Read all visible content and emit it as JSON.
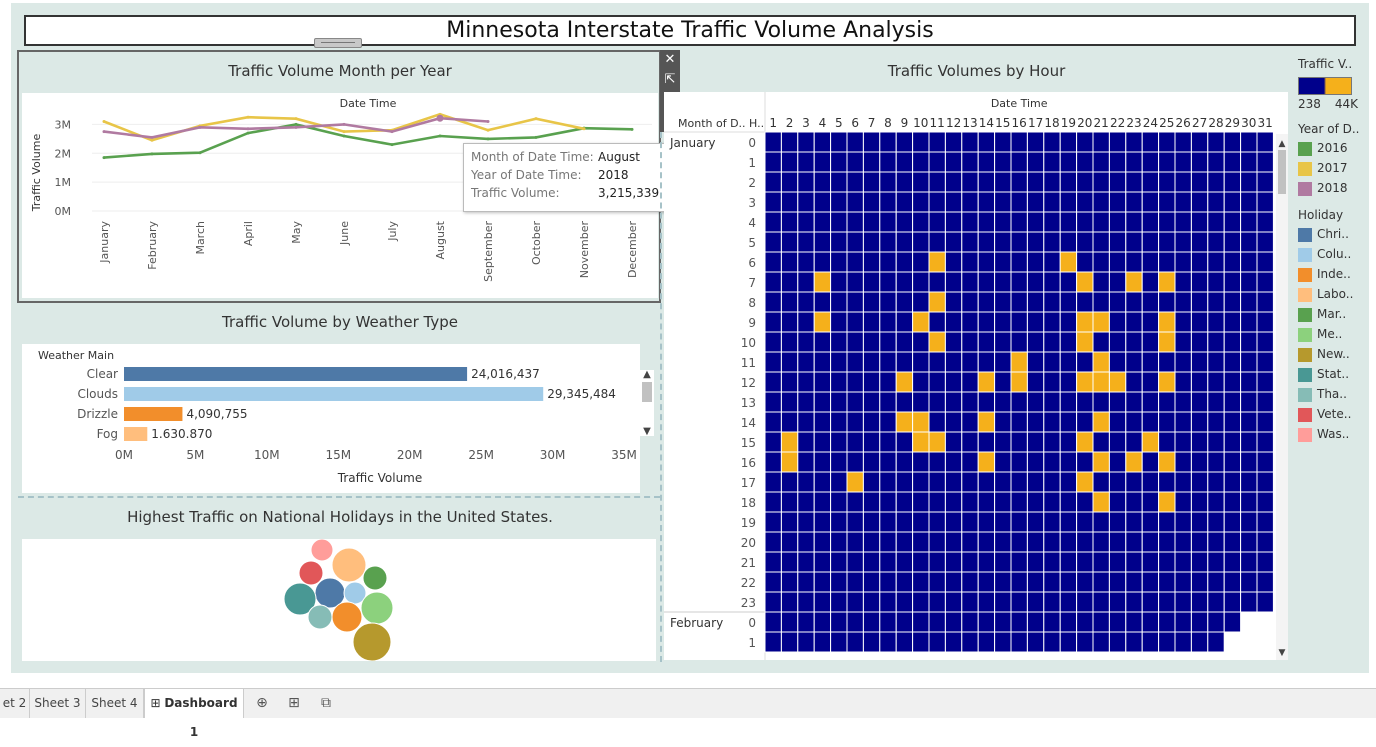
{
  "dashboard_title": "Minnesota Interstate Traffic Volume Analysis",
  "month_chart": {
    "title": "Traffic Volume Month per Year",
    "header": "Date Time",
    "ylabel": "Traffic Volume",
    "yticks": [
      "0M",
      "1M",
      "2M",
      "3M"
    ],
    "months": [
      "January",
      "February",
      "March",
      "April",
      "May",
      "June",
      "July",
      "August",
      "September",
      "October",
      "November",
      "December"
    ]
  },
  "tooltip": {
    "rows": [
      {
        "k": "Month of Date Time:",
        "v": "August"
      },
      {
        "k": "Year of Date Time:",
        "v": "2018"
      },
      {
        "k": "Traffic Volume:",
        "v": "3,215,339"
      }
    ]
  },
  "toolbar": {
    "close": "close",
    "popout": "pop-out",
    "filter": "filter",
    "more": "more options"
  },
  "weather_chart": {
    "title": "Traffic Volume by Weather Type",
    "header": "Weather Main",
    "xlabel": "Traffic Volume",
    "xticks": [
      "0M",
      "5M",
      "10M",
      "15M",
      "20M",
      "25M",
      "30M",
      "35M"
    ]
  },
  "holiday_chart": {
    "title": "Highest Traffic on National Holidays in the United States."
  },
  "heatmap": {
    "title": "Traffic Volumes by Hour",
    "header": "Date Time",
    "col_month": "Month of D..",
    "col_hour": "H..",
    "months": [
      "January",
      "February"
    ]
  },
  "legend": {
    "traffic_title": "Traffic V..",
    "traffic_min": "238",
    "traffic_max": "44K",
    "year_title": "Year of D..",
    "years": [
      {
        "label": "2016",
        "color": "#59a14f"
      },
      {
        "label": "2017",
        "color": "#e8c548"
      },
      {
        "label": "2018",
        "color": "#b07aa1"
      }
    ],
    "holiday_title": "Holiday",
    "holidays": [
      {
        "label": "Chri..",
        "color": "#4e79a7"
      },
      {
        "label": "Colu..",
        "color": "#a0cbe8"
      },
      {
        "label": "Inde..",
        "color": "#f28e2b"
      },
      {
        "label": "Labo..",
        "color": "#ffbe7d"
      },
      {
        "label": "Mar..",
        "color": "#59a14f"
      },
      {
        "label": "Me..",
        "color": "#8cd17d"
      },
      {
        "label": "New..",
        "color": "#b6992d"
      },
      {
        "label": "Stat..",
        "color": "#499894"
      },
      {
        "label": "Tha..",
        "color": "#86bcb6"
      },
      {
        "label": "Vete..",
        "color": "#e15759"
      },
      {
        "label": "Was..",
        "color": "#ff9d9a"
      }
    ]
  },
  "tabs": [
    "et 2",
    "Sheet 3",
    "Sheet 4",
    "Dashboard 1"
  ],
  "tab_icons": [
    "new-worksheet-icon",
    "new-dashboard-icon",
    "new-story-icon"
  ],
  "colors": {
    "heat_low": "#00008b",
    "heat_high": "#f5b01b"
  },
  "chart_data": [
    {
      "type": "line",
      "title": "Traffic Volume Month per Year",
      "xlabel": "Date Time",
      "ylabel": "Traffic Volume",
      "categories": [
        "January",
        "February",
        "March",
        "April",
        "May",
        "June",
        "July",
        "August",
        "September",
        "October",
        "November",
        "December"
      ],
      "ylim": [
        0,
        3500000
      ],
      "series": [
        {
          "name": "2016",
          "color": "#59a14f",
          "values": [
            1850000,
            1980000,
            2020000,
            2700000,
            3000000,
            2600000,
            2300000,
            2600000,
            2500000,
            2550000,
            2870000,
            2830000
          ]
        },
        {
          "name": "2017",
          "color": "#e8c548",
          "values": [
            3100000,
            2450000,
            2950000,
            3250000,
            3200000,
            2750000,
            2800000,
            3350000,
            2800000,
            3200000,
            2850000,
            null
          ]
        },
        {
          "name": "2018",
          "color": "#b07aa1",
          "values": [
            2750000,
            2550000,
            2900000,
            2850000,
            2900000,
            3000000,
            2750000,
            3215339,
            3100000,
            null,
            null,
            null
          ]
        }
      ],
      "grid": true
    },
    {
      "type": "bar",
      "title": "Traffic Volume by Weather Type",
      "xlabel": "Traffic Volume",
      "categories": [
        "Clear",
        "Clouds",
        "Drizzle",
        "Fog"
      ],
      "values": [
        24016437,
        29345484,
        4090755,
        1630870
      ],
      "value_labels": [
        "24,016,437",
        "29,345,484",
        "4,090,755",
        "1.630.870"
      ],
      "colors": [
        "#4e79a7",
        "#a0cbe8",
        "#f28e2b",
        "#ffbe7d"
      ],
      "xlim": [
        0,
        35000000
      ]
    },
    {
      "type": "heatmap",
      "title": "Traffic Volumes by Hour",
      "x": [
        1,
        2,
        3,
        4,
        5,
        6,
        7,
        8,
        9,
        10,
        11,
        12,
        13,
        14,
        15,
        16,
        17,
        18,
        19,
        20,
        21,
        22,
        23,
        24,
        25,
        26,
        27,
        28,
        29,
        30,
        31
      ],
      "rows": [
        {
          "month": "January",
          "hours": [
            0,
            1,
            2,
            3,
            4,
            5,
            6,
            7,
            8,
            9,
            10,
            11,
            12,
            13,
            14,
            15,
            16,
            17,
            18,
            19,
            20,
            21,
            22,
            23
          ]
        },
        {
          "month": "February",
          "hours": [
            0,
            1
          ]
        }
      ],
      "high_cells": [
        [
          6,
          11
        ],
        [
          6,
          19
        ],
        [
          7,
          4
        ],
        [
          7,
          20
        ],
        [
          7,
          23
        ],
        [
          7,
          25
        ],
        [
          8,
          11
        ],
        [
          9,
          4
        ],
        [
          9,
          10
        ],
        [
          9,
          20
        ],
        [
          9,
          21
        ],
        [
          9,
          25
        ],
        [
          10,
          11
        ],
        [
          10,
          20
        ],
        [
          10,
          25
        ],
        [
          11,
          16
        ],
        [
          11,
          21
        ],
        [
          12,
          9
        ],
        [
          12,
          14
        ],
        [
          12,
          16
        ],
        [
          12,
          20
        ],
        [
          12,
          21
        ],
        [
          12,
          22
        ],
        [
          12,
          25
        ],
        [
          14,
          9
        ],
        [
          14,
          10
        ],
        [
          14,
          14
        ],
        [
          14,
          21
        ],
        [
          15,
          2
        ],
        [
          15,
          10
        ],
        [
          15,
          11
        ],
        [
          15,
          20
        ],
        [
          15,
          24
        ],
        [
          16,
          2
        ],
        [
          16,
          14
        ],
        [
          16,
          21
        ],
        [
          16,
          23
        ],
        [
          16,
          25
        ],
        [
          17,
          6
        ],
        [
          17,
          20
        ],
        [
          18,
          21
        ],
        [
          18,
          25
        ]
      ]
    },
    {
      "type": "bubble",
      "title": "Highest Traffic on National Holidays in the United States.",
      "series": [
        {
          "name": "Chri..",
          "color": "#4e79a7"
        },
        {
          "name": "Colu..",
          "color": "#a0cbe8"
        },
        {
          "name": "Inde..",
          "color": "#f28e2b"
        },
        {
          "name": "Labo..",
          "color": "#ffbe7d"
        },
        {
          "name": "Mar..",
          "color": "#59a14f"
        },
        {
          "name": "Me..",
          "color": "#8cd17d"
        },
        {
          "name": "New..",
          "color": "#b6992d"
        },
        {
          "name": "Stat..",
          "color": "#499894"
        },
        {
          "name": "Tha..",
          "color": "#86bcb6"
        },
        {
          "name": "Vete..",
          "color": "#e15759"
        },
        {
          "name": "Was..",
          "color": "#ff9d9a"
        }
      ]
    }
  ]
}
